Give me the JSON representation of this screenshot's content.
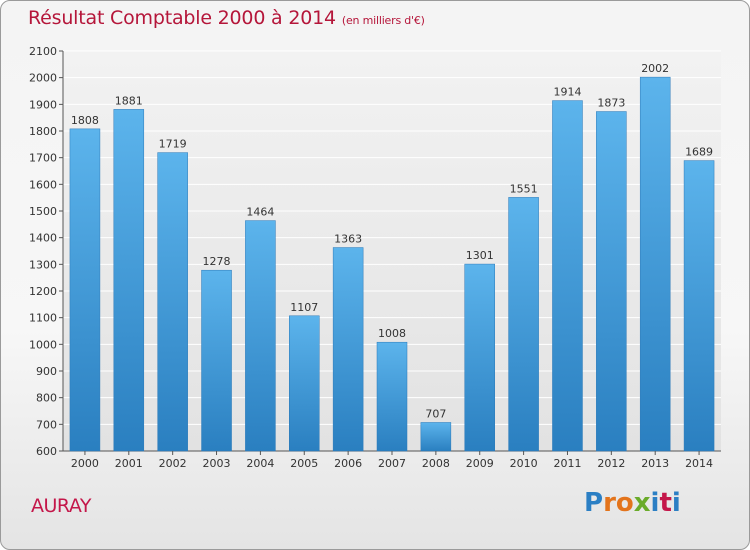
{
  "chart_data": {
    "type": "bar",
    "title": "Résultat Comptable 2000 à 2014",
    "subtitle": "(en milliers d'€)",
    "categories": [
      "2000",
      "2001",
      "2002",
      "2003",
      "2004",
      "2005",
      "2006",
      "2007",
      "2008",
      "2009",
      "2010",
      "2011",
      "2012",
      "2013",
      "2014"
    ],
    "values": [
      1808,
      1881,
      1719,
      1278,
      1464,
      1107,
      1363,
      1008,
      707,
      1301,
      1551,
      1914,
      1873,
      2002,
      1689
    ],
    "ylim": [
      600,
      2100
    ],
    "yticks": [
      600,
      700,
      800,
      900,
      1000,
      1100,
      1200,
      1300,
      1400,
      1500,
      1600,
      1700,
      1800,
      1900,
      2000,
      2100
    ],
    "xlabel": "",
    "ylabel": "",
    "grid": true,
    "bar_color": "#4aa3e0"
  },
  "footer": {
    "city": "AURAY",
    "brand_letters": [
      "P",
      "r",
      "o",
      "x",
      "i",
      "t",
      "i"
    ],
    "brand_colors": [
      "#2b7fc4",
      "#e3741c",
      "#e3741c",
      "#6aab2a",
      "#2b7fc4",
      "#c4174a",
      "#2b7fc4"
    ]
  }
}
